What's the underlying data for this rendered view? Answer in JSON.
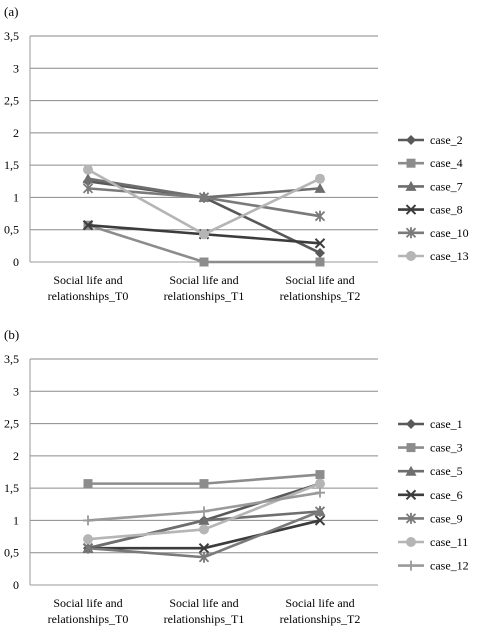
{
  "chart_data": [
    {
      "type": "line",
      "panel_label": "(a)",
      "categories": [
        [
          "Social  life and",
          "relationships_T0"
        ],
        [
          "Social  life and",
          "relationships_T1"
        ],
        [
          "Social  life and",
          "relationships_T2"
        ]
      ],
      "ylim": [
        0,
        3.5
      ],
      "yticks": [
        "0",
        "0,5",
        "1",
        "1,5",
        "2",
        "2,5",
        "3",
        "3,5"
      ],
      "grid": true,
      "legend_position": "right",
      "series": [
        {
          "name": "case_2",
          "values": [
            1.25,
            1.0,
            0.14
          ],
          "marker": "diamond",
          "color": "#595959"
        },
        {
          "name": "case_4",
          "values": [
            0.57,
            0.0,
            0.0
          ],
          "marker": "square",
          "color": "#8c8c8c"
        },
        {
          "name": "case_7",
          "values": [
            1.29,
            1.0,
            1.14
          ],
          "marker": "triangle",
          "color": "#6e6e6e"
        },
        {
          "name": "case_8",
          "values": [
            0.57,
            0.43,
            0.29
          ],
          "marker": "x",
          "color": "#3c3c3c"
        },
        {
          "name": "case_10",
          "values": [
            1.14,
            1.0,
            0.71
          ],
          "marker": "star",
          "color": "#7a7a7a"
        },
        {
          "name": "case_13",
          "values": [
            1.43,
            0.43,
            1.29
          ],
          "marker": "circle",
          "color": "#b5b5b5"
        }
      ]
    },
    {
      "type": "line",
      "panel_label": "(b)",
      "categories": [
        [
          "Social  life and",
          "relationships_T0"
        ],
        [
          "Social  life and",
          "relationships_T1"
        ],
        [
          "Social  life and",
          "relationships_T2"
        ]
      ],
      "ylim": [
        0,
        3.5
      ],
      "yticks": [
        "0",
        "0,5",
        "1",
        "1,5",
        "2",
        "2,5",
        "3",
        "3,5"
      ],
      "grid": true,
      "legend_position": "right",
      "series": [
        {
          "name": "case_1",
          "values": [
            0.57,
            1.0,
            1.57
          ],
          "marker": "diamond",
          "color": "#595959"
        },
        {
          "name": "case_3",
          "values": [
            1.57,
            1.57,
            1.71
          ],
          "marker": "square",
          "color": "#8c8c8c"
        },
        {
          "name": "case_5",
          "values": [
            0.57,
            1.0,
            1.14
          ],
          "marker": "triangle",
          "color": "#6e6e6e"
        },
        {
          "name": "case_6",
          "values": [
            0.57,
            0.57,
            1.0
          ],
          "marker": "x",
          "color": "#3c3c3c"
        },
        {
          "name": "case_9",
          "values": [
            0.57,
            0.43,
            1.14
          ],
          "marker": "star",
          "color": "#7a7a7a"
        },
        {
          "name": "case_11",
          "values": [
            0.71,
            0.86,
            1.57
          ],
          "marker": "circle",
          "color": "#b5b5b5"
        },
        {
          "name": "case_12",
          "values": [
            1.0,
            1.14,
            1.43
          ],
          "marker": "plus",
          "color": "#9a9a9a"
        }
      ]
    }
  ]
}
